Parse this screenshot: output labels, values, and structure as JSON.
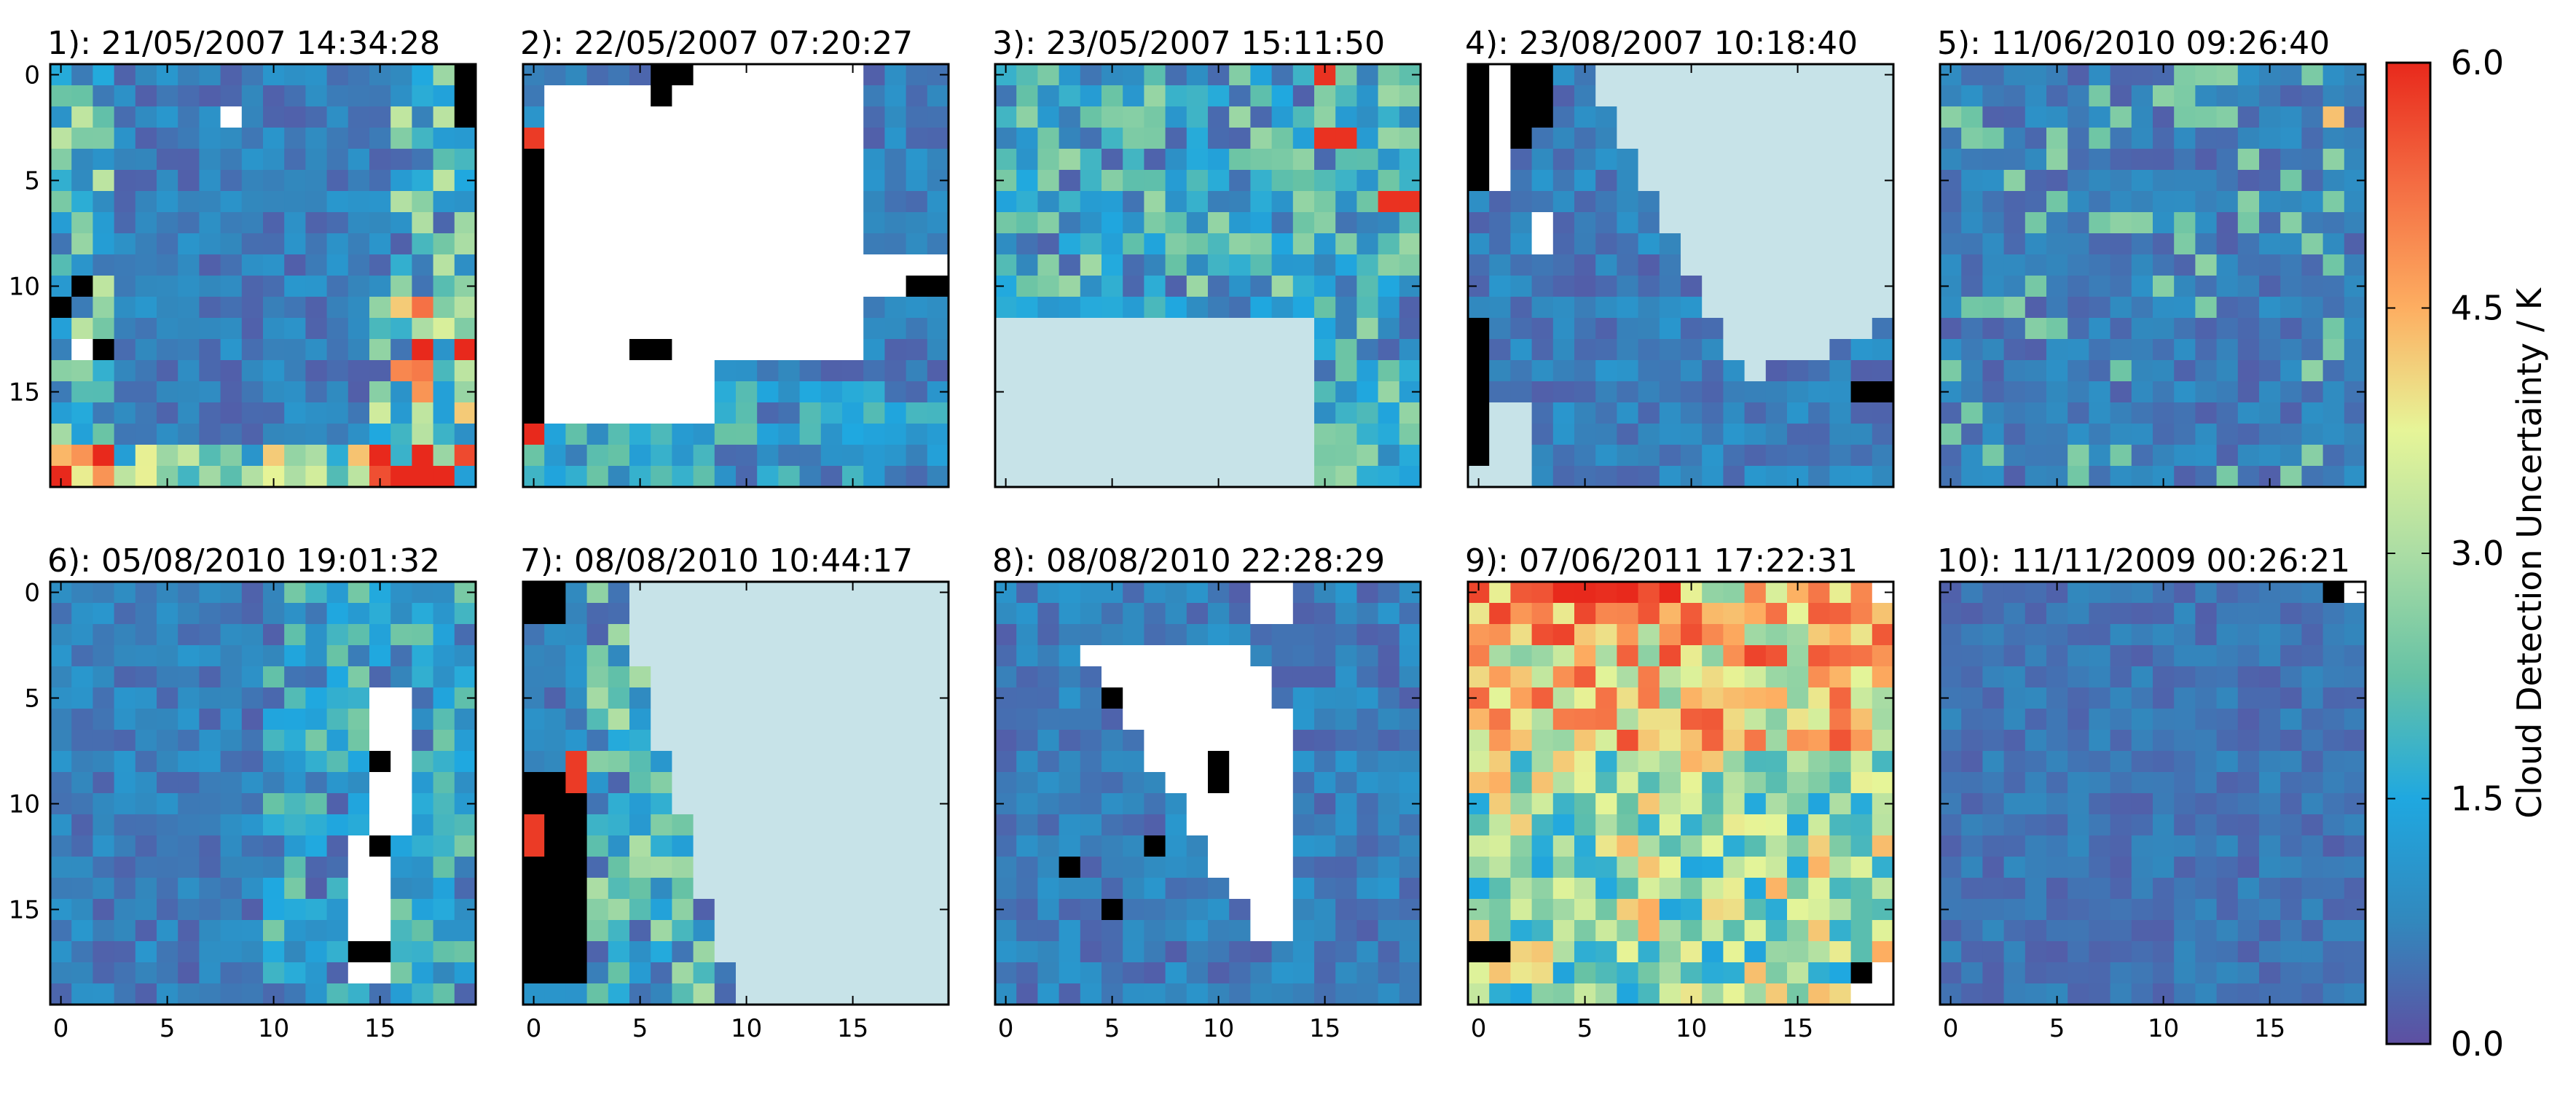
{
  "chart_data": {
    "type": "heatmap",
    "grid_size": [
      20,
      20
    ],
    "x_ticks": [
      "0",
      "5",
      "10",
      "15"
    ],
    "y_ticks": [
      "0",
      "5",
      "10",
      "15"
    ],
    "colorbar": {
      "label": "Cloud Detection Uncertainty / K",
      "vmin": 0.0,
      "vmax": 6.0,
      "ticks": [
        "0.0",
        "1.5",
        "3.0",
        "4.5",
        "6.0"
      ],
      "colors": [
        "#5e4fa2",
        "#3288bd",
        "#1fa8e0",
        "#66c2a5",
        "#abdda4",
        "#e6f598",
        "#fdae61",
        "#f46d43",
        "#e8291c"
      ]
    },
    "special_colors": {
      "clear_flag": "#000000",
      "missing": "#ffffff",
      "land": "#c7e3e8"
    },
    "panels": [
      {
        "title": "1): 21/05/2007 14:34:28"
      },
      {
        "title": "2): 22/05/2007 07:20:27"
      },
      {
        "title": "3): 23/05/2007 15:11:50"
      },
      {
        "title": "4): 23/08/2007 10:18:40"
      },
      {
        "title": "5): 11/06/2010 09:26:40"
      },
      {
        "title": "6): 05/08/2010 19:01:32"
      },
      {
        "title": "7): 08/08/2010 10:44:17"
      },
      {
        "title": "8): 08/08/2010 22:28:29"
      },
      {
        "title": "9): 07/06/2011 17:22:31"
      },
      {
        "title": "10): 11/11/2009 00:26:21"
      }
    ]
  }
}
